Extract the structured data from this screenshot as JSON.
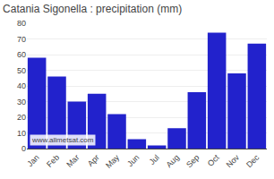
{
  "chart_data": {
    "type": "bar",
    "title": "Catania Sigonella : precipitation (mm)",
    "categories": [
      "Jan",
      "Feb",
      "Mar",
      "Apr",
      "May",
      "Jun",
      "Jul",
      "Aug",
      "Sep",
      "Oct",
      "Nov",
      "Dec"
    ],
    "values": [
      58,
      46,
      30,
      35,
      22,
      6,
      2,
      13,
      36,
      74,
      48,
      67
    ],
    "color": "#2222cc",
    "ylim": [
      0,
      80
    ],
    "yticks": [
      0,
      10,
      20,
      30,
      40,
      50,
      60,
      70,
      80
    ],
    "grid": true,
    "annotations": [
      "www.allmetsat.com"
    ]
  }
}
